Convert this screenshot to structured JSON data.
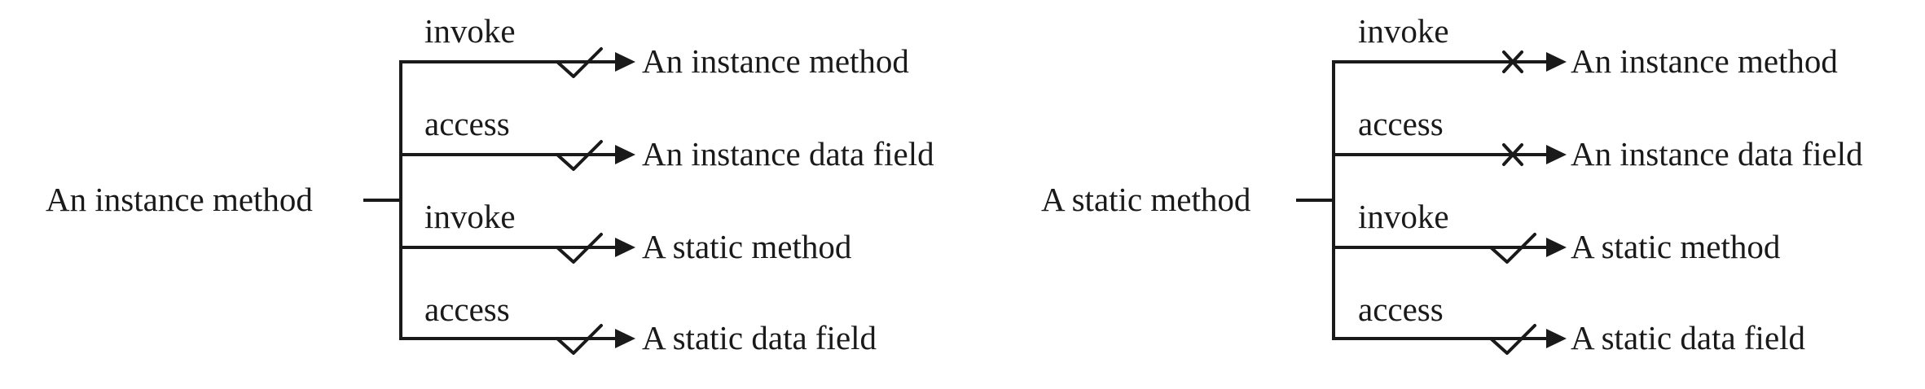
{
  "diagrams": [
    {
      "source": "An instance method",
      "branches": [
        {
          "verb": "invoke",
          "target": "An instance method",
          "allowed": true
        },
        {
          "verb": "access",
          "target": "An instance data field",
          "allowed": true
        },
        {
          "verb": "invoke",
          "target": "A static method",
          "allowed": true
        },
        {
          "verb": "access",
          "target": "A static data field",
          "allowed": true
        }
      ]
    },
    {
      "source": "A static method",
      "branches": [
        {
          "verb": "invoke",
          "target": "An instance method",
          "allowed": false
        },
        {
          "verb": "access",
          "target": "An instance data field",
          "allowed": false
        },
        {
          "verb": "invoke",
          "target": "A static method",
          "allowed": true
        },
        {
          "verb": "access",
          "target": "A static data field",
          "allowed": true
        }
      ]
    }
  ]
}
